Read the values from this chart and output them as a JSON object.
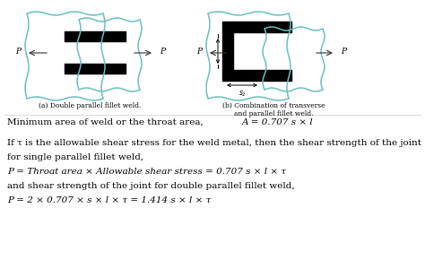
{
  "bg_color": "#ffffff",
  "body_fontsize": 7.5,
  "caption_fontsize": 5.5,
  "fig_width": 4.74,
  "fig_height": 3.0,
  "caption_a": "(a) Double parallel fillet weld.",
  "caption_b": "(b) Combination of transverse\nand parallel fillet weld.",
  "line1a": "Minimum area of weld or the throat area,",
  "line1b": "A = 0.707 s × l",
  "line2": "If τ is the allowable shear stress for the weld metal, then the shear strength of the joint",
  "line3": "for single parallel fillet weld,",
  "line4": "P = Throat area × Allowable shear stress = 0.707 s × l × τ",
  "line5": "and shear strength of the joint for double parallel fillet weld,",
  "line6": "P = 2 × 0.707 × s × l × τ = 1.414 s × l × τ",
  "text_color": "#000000",
  "weld_color": "#000000",
  "cyan_color": "#6bbfbf",
  "arrow_color": "#555555"
}
